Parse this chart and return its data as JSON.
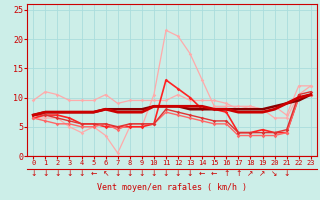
{
  "xlabel": "Vent moyen/en rafales ( km/h )",
  "xlim": [
    -0.5,
    23.5
  ],
  "ylim": [
    0,
    26
  ],
  "yticks": [
    0,
    5,
    10,
    15,
    20,
    25
  ],
  "xticks": [
    0,
    1,
    2,
    3,
    4,
    5,
    6,
    7,
    8,
    9,
    10,
    11,
    12,
    13,
    14,
    15,
    16,
    17,
    18,
    19,
    20,
    21,
    22,
    23
  ],
  "bg_color": "#cceee8",
  "grid_color": "#aadddd",
  "series": [
    {
      "y": [
        9.5,
        11.0,
        10.5,
        9.5,
        9.5,
        9.5,
        10.5,
        9.0,
        9.5,
        9.5,
        9.5,
        9.5,
        10.5,
        9.5,
        9.5,
        9.5,
        9.0,
        8.0,
        8.5,
        8.0,
        8.5,
        7.0,
        12.0,
        12.0
      ],
      "color": "#ffaaaa",
      "lw": 0.9,
      "marker": "D",
      "ms": 1.8
    },
    {
      "y": [
        6.5,
        6.5,
        6.5,
        5.0,
        4.0,
        5.0,
        3.5,
        0.5,
        5.0,
        5.0,
        10.5,
        21.5,
        20.5,
        17.5,
        13.0,
        8.5,
        8.5,
        8.5,
        8.5,
        8.0,
        6.5,
        6.5,
        10.5,
        12.0
      ],
      "color": "#ffaaaa",
      "lw": 0.9,
      "marker": "D",
      "ms": 1.8
    },
    {
      "y": [
        7.0,
        7.5,
        7.5,
        7.5,
        7.5,
        7.5,
        8.0,
        8.0,
        8.0,
        8.0,
        8.5,
        8.5,
        8.5,
        8.0,
        8.0,
        8.0,
        8.0,
        8.0,
        8.0,
        8.0,
        8.5,
        9.0,
        9.5,
        10.5
      ],
      "color": "#880000",
      "lw": 1.8,
      "marker": null,
      "ms": 0
    },
    {
      "y": [
        6.5,
        7.0,
        7.0,
        6.5,
        5.5,
        5.5,
        5.0,
        5.0,
        5.0,
        5.0,
        5.5,
        13.0,
        11.5,
        10.0,
        8.0,
        8.0,
        7.5,
        4.0,
        4.0,
        4.5,
        4.0,
        4.0,
        10.0,
        10.5
      ],
      "color": "#ff2222",
      "lw": 1.2,
      "marker": "D",
      "ms": 1.8
    },
    {
      "y": [
        7.0,
        7.5,
        7.5,
        7.5,
        7.5,
        7.5,
        8.0,
        7.5,
        7.5,
        7.5,
        8.5,
        8.5,
        8.5,
        8.5,
        8.5,
        8.0,
        8.0,
        7.5,
        7.5,
        7.5,
        8.0,
        9.0,
        10.0,
        10.5
      ],
      "color": "#cc0000",
      "lw": 2.0,
      "marker": null,
      "ms": 0
    },
    {
      "y": [
        6.5,
        6.0,
        5.5,
        5.5,
        5.0,
        5.0,
        5.5,
        4.5,
        5.5,
        5.5,
        5.5,
        7.5,
        7.0,
        6.5,
        6.0,
        5.5,
        5.5,
        3.5,
        3.5,
        3.5,
        3.5,
        4.0,
        10.0,
        10.5
      ],
      "color": "#ff6666",
      "lw": 1.0,
      "marker": "D",
      "ms": 1.8
    },
    {
      "y": [
        7.0,
        7.0,
        6.5,
        6.0,
        5.5,
        5.5,
        5.5,
        5.0,
        5.5,
        5.5,
        5.5,
        8.0,
        7.5,
        7.0,
        6.5,
        6.0,
        6.0,
        4.0,
        4.0,
        4.0,
        4.0,
        4.5,
        10.5,
        11.0
      ],
      "color": "#dd3333",
      "lw": 1.0,
      "marker": "D",
      "ms": 1.8
    }
  ],
  "arrows": [
    "↓",
    "↓",
    "↓",
    "↓",
    "↓",
    "←",
    "↖",
    "↓",
    "↓",
    "↓",
    "↓",
    "↓",
    "↓",
    "↓",
    "←",
    "←",
    "↑",
    "↑",
    "↗",
    "↗",
    "↘",
    "↓",
    "",
    ""
  ]
}
